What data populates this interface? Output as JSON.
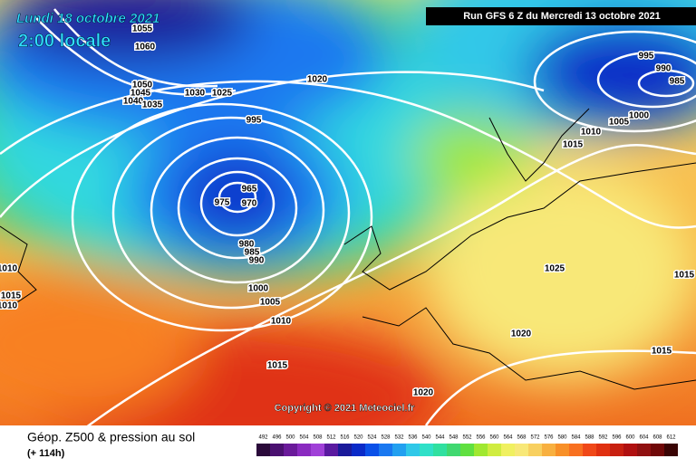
{
  "header": {
    "date": "Lundi 18 octobre 2021",
    "time": "2:00 locale",
    "run": "Run GFS 6 Z du Mercredi 13 octobre 2021"
  },
  "isobars": [
    1055,
    1060,
    1050,
    1045,
    1040,
    1035,
    1030,
    1025,
    1020,
    995,
    965,
    970,
    975,
    980,
    985,
    990,
    1000,
    1005,
    1010,
    1015,
    1020,
    1025,
    1020,
    1015,
    1015,
    1015,
    1010,
    1005,
    1000,
    995,
    990,
    985,
    1010,
    1015,
    1010
  ],
  "copyright": "Copyright © 2021 Meteociel.fr",
  "footer": {
    "title": "Géop. Z500 & pression au sol",
    "subtitle": "(+ 114h)"
  },
  "legend": {
    "values": [
      492,
      496,
      500,
      504,
      508,
      512,
      516,
      520,
      524,
      528,
      532,
      536,
      540,
      544,
      548,
      552,
      556,
      560,
      564,
      568,
      572,
      576,
      580,
      584,
      588,
      592,
      596,
      600,
      604,
      608,
      612
    ],
    "colors": [
      "#2a0a3a",
      "#4a1070",
      "#6a1a9a",
      "#8a2ac0",
      "#a040d8",
      "#5a1aa0",
      "#1a1a9a",
      "#0a2ac8",
      "#0a50e8",
      "#1a78f0",
      "#22a0f0",
      "#30c8e8",
      "#30e0c8",
      "#30e0a0",
      "#40d870",
      "#60e040",
      "#a0e830",
      "#d0ec40",
      "#f0f060",
      "#f8e878",
      "#f8d060",
      "#f8b040",
      "#f89028",
      "#f87020",
      "#f04818",
      "#e03010",
      "#c82010",
      "#b01010",
      "#901010",
      "#700808",
      "#3a0404"
    ]
  }
}
